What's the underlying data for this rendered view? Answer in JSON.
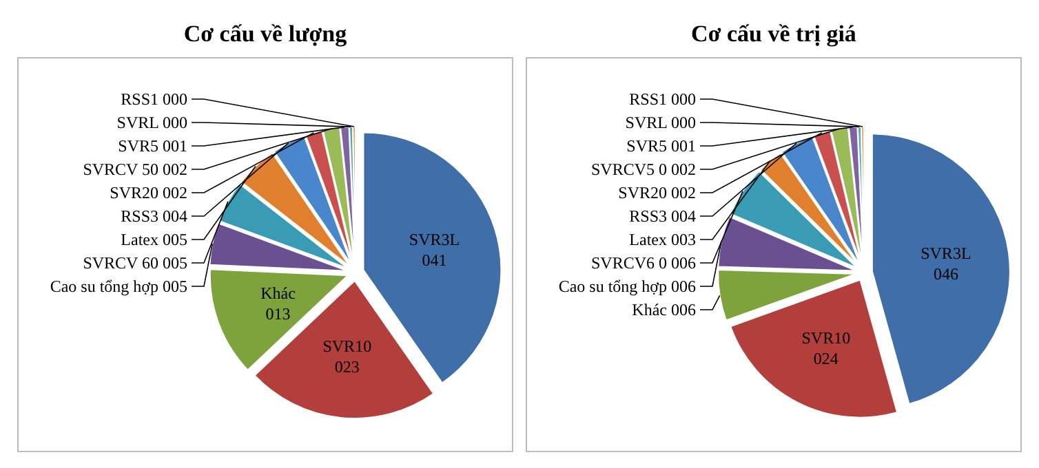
{
  "chart_data": [
    {
      "type": "pie",
      "title": "Cơ cấu về lượng",
      "categories": [
        "SVR3L",
        "SVR10",
        "Khác",
        "Cao su tổng hợp",
        "SVRCV 60",
        "Latex",
        "RSS3",
        "SVR20",
        "SVRCV 50",
        "SVR5",
        "SVRL",
        "RSS1"
      ],
      "values": [
        41,
        23,
        13,
        5,
        5,
        5,
        4,
        2,
        2,
        1,
        0.4,
        0.3
      ],
      "value_labels": [
        "041",
        "023",
        "013",
        "005",
        "005",
        "005",
        "004",
        "002",
        "002",
        "001",
        "000",
        "000"
      ],
      "colors": [
        "#3f6ea8",
        "#b23f3c",
        "#7ea33c",
        "#6a4f91",
        "#3a9cb4",
        "#e0802f",
        "#4a86cc",
        "#c9504e",
        "#9bbb59",
        "#8064a2",
        "#4bacc6",
        "#f79646"
      ]
    },
    {
      "type": "pie",
      "title": "Cơ cấu về trị giá",
      "categories": [
        "SVR3L",
        "SVR10",
        "Khác",
        "Cao su tổng hợp",
        "SVRCV6 0",
        "Latex",
        "RSS3",
        "SVR20",
        "SVRCV5 0",
        "SVR5",
        "SVRL",
        "RSS1"
      ],
      "values": [
        46,
        24,
        6,
        6,
        6,
        3,
        4,
        2,
        2,
        1,
        0.4,
        0.3
      ],
      "value_labels": [
        "046",
        "024",
        "006",
        "006",
        "006",
        "003",
        "004",
        "002",
        "002",
        "001",
        "000",
        "000"
      ],
      "colors": [
        "#3f6ea8",
        "#b23f3c",
        "#7ea33c",
        "#6a4f91",
        "#3a9cb4",
        "#e0802f",
        "#4a86cc",
        "#c9504e",
        "#9bbb59",
        "#8064a2",
        "#4bacc6",
        "#f79646"
      ]
    }
  ]
}
